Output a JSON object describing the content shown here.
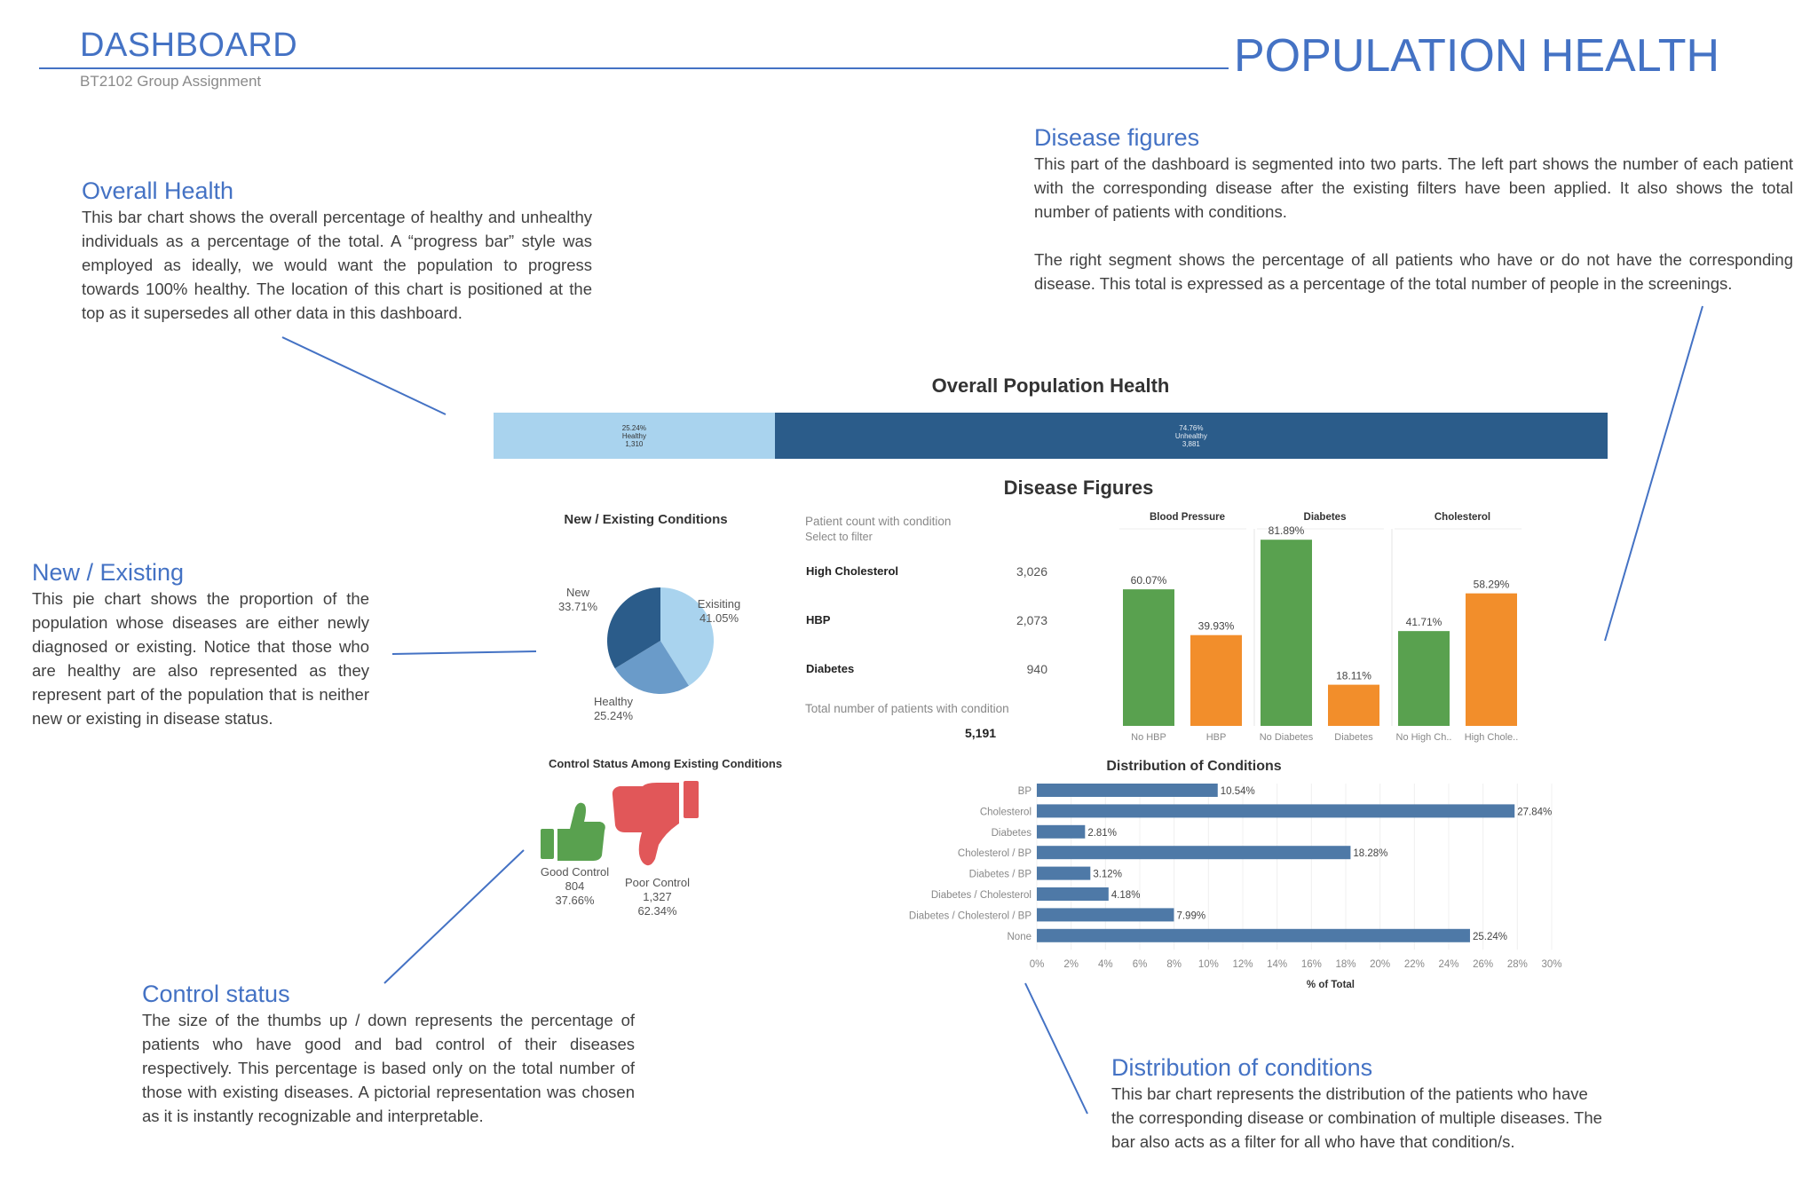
{
  "header": {
    "left_title": "DASHBOARD",
    "subtitle": "BT2102 Group Assignment",
    "right_title": "POPULATION HEALTH"
  },
  "notes": {
    "overall": {
      "title": "Overall Health",
      "body": "This bar chart shows the overall percentage of healthy and unhealthy individuals as a percentage of the total. A “progress bar” style was employed as ideally, we would want the population to progress towards 100% healthy. The location of this chart is positioned at the top as it supersedes all other data in this dashboard."
    },
    "new_existing": {
      "title": "New / Existing",
      "body": "This pie chart shows the proportion of the population whose diseases are either newly diagnosed or existing. Notice that those who are healthy are also represented as they represent part of the population that is neither new or existing in disease status."
    },
    "control": {
      "title": "Control status",
      "body": "The size of the thumbs up / down represents the percentage of patients who have good and bad control of their diseases respectively. This percentage is based only on the total number of those with existing diseases. A pictorial representation was chosen as it is instantly recognizable and interpretable."
    },
    "disease": {
      "title": "Disease figures",
      "body1": "This part of the dashboard is segmented into two parts. The left part shows the number of each patient with the corresponding disease after the existing filters have been applied. It also shows the total number of patients with conditions.",
      "body2": "The right segment shows the percentage of all patients who have or do not have the corresponding disease. This total is expressed as a percentage of the total number of people in the screenings."
    },
    "distribution": {
      "title": "Distribution of conditions",
      "body": "This bar chart represents the distribution of the patients who have the corresponding disease or combination of multiple diseases. The bar also acts as a filter for all who have that condition/s."
    }
  },
  "disease_figures_title": "Disease Figures",
  "kpi": {
    "header1": "Patient count with condition",
    "header2": "Select to filter",
    "rows": [
      {
        "label": "High Cholesterol",
        "value": "3,026"
      },
      {
        "label": "HBP",
        "value": "2,073"
      },
      {
        "label": "Diabetes",
        "value": "940"
      }
    ],
    "total_label": "Total number of patients with condition",
    "total_value": "5,191"
  },
  "control_status": {
    "title": "Control Status Among Existing Conditions",
    "good": {
      "label": "Good Control",
      "count": "804",
      "pct": "37.66%",
      "color": "#59a14f"
    },
    "poor": {
      "label": "Poor Control",
      "count": "1,327",
      "pct": "62.34%",
      "color": "#e15759"
    }
  },
  "chart_data": [
    {
      "type": "bar",
      "orientation": "horizontal-stacked",
      "title": "Overall Population Health",
      "series": [
        {
          "name": "Healthy",
          "value": 25.24,
          "label": "25.24%",
          "count": "1,310",
          "color": "#a9d3ee"
        },
        {
          "name": "Unhealthy",
          "value": 74.76,
          "label": "74.76%",
          "count": "3,881",
          "color": "#2b5c8a"
        }
      ]
    },
    {
      "type": "pie",
      "title": "New / Existing Conditions",
      "slices": [
        {
          "name": "Exisiting",
          "value": 41.05,
          "label": "41.05%",
          "color": "#a9d3ee"
        },
        {
          "name": "Healthy",
          "value": 25.24,
          "label": "25.24%",
          "color": "#6a9bc9"
        },
        {
          "name": "New",
          "value": 33.71,
          "label": "33.71%",
          "color": "#2b5c8a"
        }
      ]
    },
    {
      "type": "bar",
      "title": "",
      "ylim": [
        0,
        100
      ],
      "groups": [
        {
          "name": "Blood Pressure",
          "bars": [
            {
              "category": "No HBP",
              "value": 60.07,
              "label": "60.07%",
              "color": "#59a14f"
            },
            {
              "category": "HBP",
              "value": 39.93,
              "label": "39.93%",
              "color": "#f28e2b"
            }
          ]
        },
        {
          "name": "Diabetes",
          "bars": [
            {
              "category": "No Diabetes",
              "value": 81.89,
              "label": "81.89%",
              "color": "#59a14f"
            },
            {
              "category": "Diabetes",
              "value": 18.11,
              "label": "18.11%",
              "color": "#f28e2b"
            }
          ]
        },
        {
          "name": "Cholesterol",
          "bars": [
            {
              "category": "No High Ch..",
              "value": 41.71,
              "label": "41.71%",
              "color": "#59a14f"
            },
            {
              "category": "High Chole..",
              "value": 58.29,
              "label": "58.29%",
              "color": "#f28e2b"
            }
          ]
        }
      ]
    },
    {
      "type": "bar",
      "orientation": "horizontal",
      "title": "Distribution of Conditions",
      "xlabel": "% of Total",
      "xlim": [
        0,
        30
      ],
      "xticks": [
        "0%",
        "2%",
        "4%",
        "6%",
        "8%",
        "10%",
        "12%",
        "14%",
        "16%",
        "18%",
        "20%",
        "22%",
        "24%",
        "26%",
        "28%",
        "30%"
      ],
      "categories": [
        "BP",
        "Cholesterol",
        "Diabetes",
        "Cholesterol / BP",
        "Diabetes / BP",
        "Diabetes / Cholesterol",
        "Diabetes / Cholesterol / BP",
        "None"
      ],
      "values": [
        10.54,
        27.84,
        2.81,
        18.28,
        3.12,
        4.18,
        7.99,
        25.24
      ],
      "labels": [
        "10.54%",
        "27.84%",
        "2.81%",
        "18.28%",
        "3.12%",
        "4.18%",
        "7.99%",
        "25.24%"
      ],
      "color": "#4e79a7"
    }
  ]
}
